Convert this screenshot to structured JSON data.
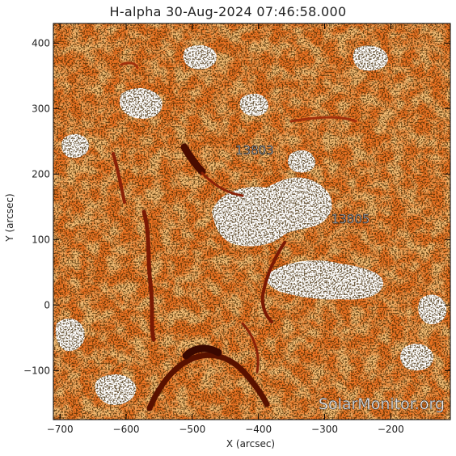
{
  "title": "H-alpha 30-Aug-2024 07:46:58.000",
  "x_axis_label": "X (arcsec)",
  "y_axis_label": "Y (arcsec)",
  "watermark": "SolarMonitor.org",
  "regions": [
    {
      "label": "13803",
      "x": -435,
      "y": 230
    },
    {
      "label": "13805",
      "x": -290,
      "y": 125
    }
  ],
  "chart_data": {
    "type": "heatmap",
    "title": "H-alpha 30-Aug-2024 07:46:58.000",
    "xlabel": "X (arcsec)",
    "ylabel": "Y (arcsec)",
    "xlim": [
      -710,
      -110
    ],
    "ylim": [
      -175,
      430
    ],
    "x_ticks": [
      -700,
      -600,
      -500,
      -400,
      -300,
      -200
    ],
    "y_ticks": [
      -100,
      0,
      100,
      200,
      300,
      400
    ],
    "colormap": [
      "#000000",
      "#5a1200",
      "#b4320a",
      "#e8641c",
      "#f59646",
      "#ffffff"
    ],
    "grid": false
  }
}
